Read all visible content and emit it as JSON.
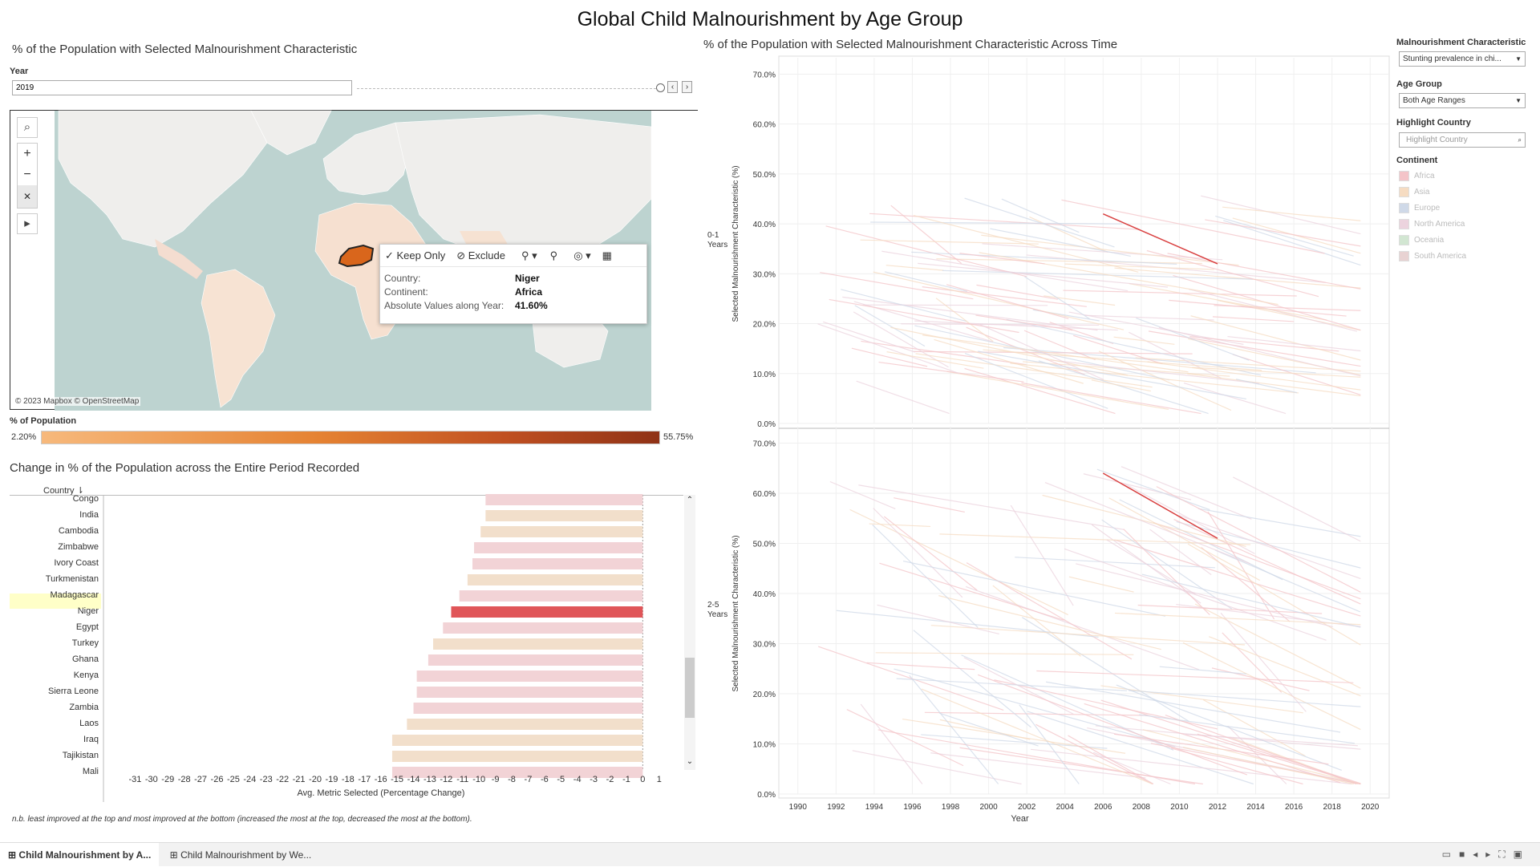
{
  "dashboard": {
    "title": "Global Child Malnourishment by Age Group"
  },
  "map_section": {
    "title": "% of the Population with Selected Malnourishment Characteristic",
    "year_label": "Year",
    "year_value": "2019",
    "attribution": "© 2023 Mapbox © OpenStreetMap",
    "highlighted_country_color": "#d9661c",
    "land_color": "#f1efee",
    "water_color": "#bdd3d0"
  },
  "tooltip": {
    "keep_only": "✓ Keep Only",
    "exclude": "⊘ Exclude",
    "rows": [
      {
        "key": "Country:",
        "value": "Niger"
      },
      {
        "key": "Continent:",
        "value": "Africa"
      },
      {
        "key": "Absolute Values along Year:",
        "value": "41.60%"
      }
    ]
  },
  "color_legend": {
    "title": "% of Population",
    "min": "2.20%",
    "max": "55.75%"
  },
  "bar_section": {
    "title": "Change in % of the Population across the Entire Period Recorded",
    "column_header": "Country",
    "xlabel": "Avg. Metric Selected (Percentage Change)",
    "note": "n.b. least improved at the top and most improved at the bottom (increased the most at the top, decreased the most at the bottom)."
  },
  "chart_data": [
    {
      "type": "bar",
      "orientation": "horizontal",
      "title": "Change in % of the Population across the Entire Period Recorded",
      "xlabel": "Avg. Metric Selected (Percentage Change)",
      "xlim": [
        -32,
        2
      ],
      "xticks": [
        "-31",
        "-30",
        "-29",
        "-28",
        "-27",
        "-26",
        "-25",
        "-24",
        "-23",
        "-22",
        "-21",
        "-20",
        "-19",
        "-18",
        "-17",
        "-16",
        "-15",
        "-14",
        "-13",
        "-12",
        "-11",
        "-10",
        "-9",
        "-8",
        "-7",
        "-6",
        "-5",
        "-4",
        "-3",
        "-2",
        "-1",
        "0",
        "1"
      ],
      "categories": [
        "Congo",
        "India",
        "Cambodia",
        "Zimbabwe",
        "Ivory Coast",
        "Turkmenistan",
        "Madagascar",
        "Niger",
        "Egypt",
        "Turkey",
        "Ghana",
        "Kenya",
        "Sierra Leone",
        "Zambia",
        "Laos",
        "Iraq",
        "Tajikistan",
        "Mali"
      ],
      "values": [
        -9.6,
        -9.6,
        -9.9,
        -10.3,
        -10.4,
        -10.7,
        -11.2,
        -11.7,
        -12.2,
        -12.8,
        -13.1,
        -13.8,
        -13.8,
        -14.0,
        -14.4,
        -15.3,
        -15.3,
        -15.3
      ],
      "continents": [
        "Africa",
        "Asia",
        "Asia",
        "Africa",
        "Africa",
        "Asia",
        "Africa",
        "Africa",
        "Africa",
        "Asia",
        "Africa",
        "Africa",
        "Africa",
        "Africa",
        "Asia",
        "Asia",
        "Asia",
        "Africa"
      ],
      "highlighted": "Niger"
    },
    {
      "type": "line",
      "title": "% of the Population with Selected Malnourishment Characteristic Across Time",
      "xlabel": "Year",
      "ylabel": "Selected Malnourishment Characteristic (%)",
      "xlim": [
        1989,
        2021
      ],
      "xticks": [
        "1990",
        "1992",
        "1994",
        "1996",
        "1998",
        "2000",
        "2002",
        "2004",
        "2006",
        "2008",
        "2010",
        "2012",
        "2014",
        "2016",
        "2018",
        "2020"
      ],
      "ylim": [
        0,
        72
      ],
      "yticks": [
        "0.0%",
        "10.0%",
        "20.0%",
        "30.0%",
        "40.0%",
        "50.0%",
        "60.0%",
        "70.0%"
      ],
      "panels": [
        {
          "name": "0-1 Years",
          "highlight": {
            "country": "Niger",
            "x": [
              2006,
              2012
            ],
            "y": [
              42,
              32
            ]
          }
        },
        {
          "name": "2-5 Years",
          "highlight": {
            "country": "Niger",
            "x": [
              2006,
              2012
            ],
            "y": [
              64,
              51
            ]
          }
        }
      ]
    }
  ],
  "filters": {
    "malnourishment_label": "Malnourishment Characteristic",
    "malnourishment_value": "Stunting prevalence in chi...",
    "age_group_label": "Age Group",
    "age_group_value": "Both Age Ranges",
    "highlight_label": "Highlight Country",
    "highlight_placeholder": "Highlight Country",
    "continent_label": "Continent",
    "continents": [
      {
        "name": "Africa",
        "color": "#f4c4c8"
      },
      {
        "name": "Asia",
        "color": "#f6dcc2"
      },
      {
        "name": "Europe",
        "color": "#cfd9e8"
      },
      {
        "name": "North America",
        "color": "#ecd3de"
      },
      {
        "name": "Oceania",
        "color": "#d2e6d2"
      },
      {
        "name": "South America",
        "color": "#e8d2d2"
      }
    ]
  },
  "colors": {
    "highlight": "#e05558",
    "africa": "#f2d3d6",
    "asia": "#f2dfcb"
  },
  "tabs": {
    "active": "Child Malnourishment by A...",
    "other": "Child Malnourishment by We..."
  }
}
